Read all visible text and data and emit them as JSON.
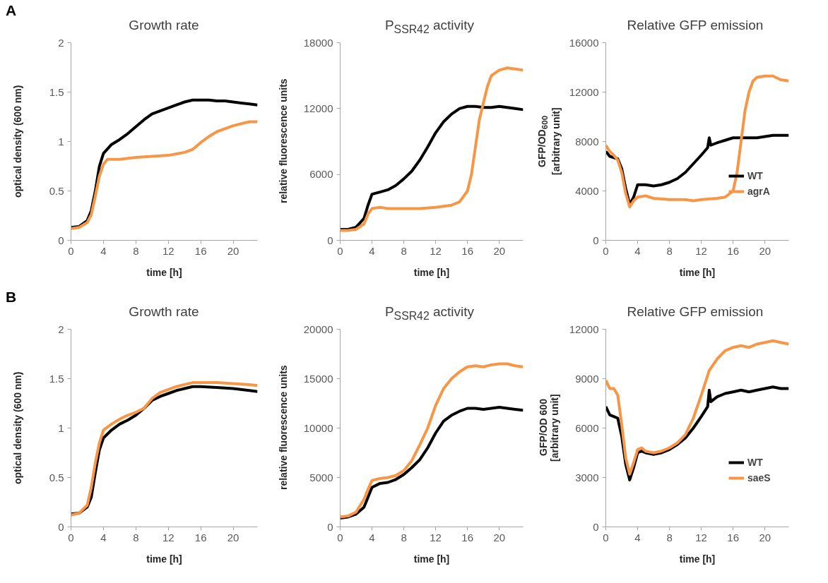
{
  "chart_data": [
    {
      "type": "line",
      "title": "Growth rate",
      "xlabel": "time [h]",
      "ylabel": "optical density (600 nm)",
      "annotations": [
        "A"
      ],
      "xlim": [
        0,
        23
      ],
      "xticks": [
        0,
        4,
        8,
        12,
        16,
        20
      ],
      "ylim": [
        0,
        2
      ],
      "yticks": [
        0,
        0.5,
        1,
        1.5,
        2
      ],
      "grid": false,
      "legend": false,
      "series": [
        {
          "color": "#000000",
          "x": [
            0,
            1,
            2,
            2.5,
            3,
            3.5,
            4,
            5,
            6,
            7,
            8,
            9,
            10,
            11,
            12,
            13,
            14,
            15,
            16,
            17,
            18,
            19,
            20,
            21,
            22,
            23
          ],
          "values": [
            0.13,
            0.14,
            0.2,
            0.3,
            0.5,
            0.75,
            0.88,
            0.97,
            1.02,
            1.08,
            1.15,
            1.22,
            1.28,
            1.31,
            1.34,
            1.37,
            1.4,
            1.42,
            1.42,
            1.42,
            1.41,
            1.41,
            1.4,
            1.39,
            1.38,
            1.37
          ]
        },
        {
          "color": "#f79646",
          "x": [
            0,
            1,
            2,
            2.5,
            3,
            3.5,
            4,
            4.5,
            5,
            6,
            8,
            10,
            12,
            14,
            15,
            16,
            17,
            18,
            19,
            20,
            21,
            22,
            23
          ],
          "values": [
            0.12,
            0.13,
            0.18,
            0.26,
            0.45,
            0.65,
            0.77,
            0.82,
            0.82,
            0.82,
            0.84,
            0.85,
            0.86,
            0.89,
            0.92,
            0.99,
            1.05,
            1.1,
            1.13,
            1.16,
            1.18,
            1.2,
            1.2
          ]
        }
      ]
    },
    {
      "type": "line",
      "title": "P$_{SSR42}$ activity",
      "xlabel": "time [h]",
      "ylabel": "relative fluorescence units",
      "xlim": [
        0,
        23
      ],
      "xticks": [
        0,
        4,
        8,
        12,
        16,
        20
      ],
      "ylim": [
        0,
        18000
      ],
      "yticks": [
        0,
        6000,
        12000,
        18000
      ],
      "grid": false,
      "legend": false,
      "series": [
        {
          "color": "#000000",
          "x": [
            0,
            1,
            2,
            3,
            3.5,
            4,
            5,
            6,
            7,
            8,
            9,
            10,
            11,
            12,
            13,
            14,
            15,
            16,
            17,
            18,
            19,
            20,
            21,
            22,
            23
          ],
          "values": [
            1000,
            1000,
            1200,
            2000,
            3200,
            4200,
            4400,
            4600,
            5000,
            5600,
            6300,
            7300,
            8500,
            9800,
            10800,
            11500,
            12000,
            12200,
            12200,
            12100,
            12100,
            12200,
            12100,
            12000,
            11900
          ]
        },
        {
          "color": "#f79646",
          "x": [
            0,
            1,
            2,
            3,
            3.5,
            4,
            5,
            6,
            8,
            10,
            12,
            14,
            15,
            16,
            16.5,
            17,
            17.5,
            18,
            18.5,
            19,
            20,
            21,
            22,
            23
          ],
          "values": [
            900,
            900,
            1000,
            1500,
            2400,
            2900,
            3000,
            2900,
            2900,
            2900,
            3000,
            3200,
            3500,
            4500,
            6000,
            8500,
            11000,
            12500,
            14000,
            15000,
            15500,
            15700,
            15600,
            15500
          ]
        }
      ]
    },
    {
      "type": "line",
      "title": "Relative GFP emission",
      "xlabel": "time [h]",
      "ylabel": "GFP/OD$_{600}$\n[arbitrary unit]",
      "xlim": [
        0,
        23
      ],
      "xticks": [
        0,
        4,
        8,
        12,
        16,
        20
      ],
      "ylim": [
        0,
        16000
      ],
      "yticks": [
        0,
        4000,
        8000,
        12000,
        16000
      ],
      "grid": false,
      "legend": "right",
      "series": [
        {
          "name": "WT",
          "color": "#000000",
          "x": [
            0,
            0.5,
            1,
            1.5,
            2,
            2.5,
            3,
            3.5,
            4,
            5,
            6,
            7,
            8,
            9,
            10,
            11,
            12,
            12.8,
            13,
            13.2,
            14,
            15,
            16,
            17,
            18,
            19,
            20,
            21,
            22,
            23
          ],
          "values": [
            7200,
            6800,
            6700,
            6600,
            5800,
            4200,
            2900,
            3500,
            4500,
            4500,
            4400,
            4500,
            4700,
            5000,
            5500,
            6200,
            6900,
            7500,
            8300,
            7700,
            7900,
            8100,
            8300,
            8300,
            8300,
            8300,
            8400,
            8500,
            8500,
            8500
          ]
        },
        {
          "name": "agrA",
          "color": "#f79646",
          "x": [
            0,
            0.5,
            1,
            1.5,
            2,
            2.5,
            3,
            3.5,
            4,
            5,
            6,
            8,
            10,
            11,
            12,
            14,
            15,
            16,
            16.5,
            17,
            17.5,
            18,
            18.5,
            19,
            20,
            21,
            22,
            23
          ],
          "values": [
            7700,
            7200,
            6900,
            6500,
            5500,
            3800,
            2700,
            3200,
            3500,
            3600,
            3400,
            3300,
            3300,
            3200,
            3300,
            3400,
            3500,
            4000,
            5500,
            8000,
            10500,
            12000,
            12900,
            13200,
            13300,
            13300,
            13000,
            12900
          ]
        }
      ]
    },
    {
      "type": "line",
      "title": "Growth rate",
      "xlabel": "time [h]",
      "ylabel": "optical density (600 nm)",
      "annotations": [
        "B"
      ],
      "xlim": [
        0,
        23
      ],
      "xticks": [
        0,
        4,
        8,
        12,
        16,
        20
      ],
      "ylim": [
        0,
        2
      ],
      "yticks": [
        0,
        0.5,
        1,
        1.5,
        2
      ],
      "grid": false,
      "legend": false,
      "series": [
        {
          "color": "#000000",
          "x": [
            0,
            1,
            2,
            2.5,
            3,
            3.5,
            4,
            5,
            6,
            7,
            8,
            9,
            10,
            11,
            12,
            13,
            14,
            15,
            16,
            18,
            20,
            22,
            23
          ],
          "values": [
            0.13,
            0.14,
            0.2,
            0.3,
            0.55,
            0.78,
            0.9,
            0.98,
            1.04,
            1.08,
            1.13,
            1.2,
            1.28,
            1.32,
            1.35,
            1.38,
            1.4,
            1.42,
            1.42,
            1.41,
            1.4,
            1.38,
            1.37
          ]
        },
        {
          "color": "#f79646",
          "x": [
            0,
            1,
            2,
            2.5,
            3,
            3.5,
            4,
            5,
            6,
            7,
            8,
            9,
            10,
            11,
            12,
            13,
            14,
            15,
            16,
            18,
            20,
            22,
            23
          ],
          "values": [
            0.12,
            0.14,
            0.22,
            0.4,
            0.65,
            0.85,
            0.98,
            1.04,
            1.09,
            1.13,
            1.16,
            1.2,
            1.3,
            1.36,
            1.39,
            1.42,
            1.44,
            1.46,
            1.46,
            1.46,
            1.45,
            1.44,
            1.43
          ]
        }
      ]
    },
    {
      "type": "line",
      "title": "P$_{SSR42}$ activity",
      "xlabel": "time [h]",
      "ylabel": "relative fluorescence  units",
      "xlim": [
        0,
        23
      ],
      "xticks": [
        0,
        4,
        8,
        12,
        16,
        20
      ],
      "ylim": [
        0,
        20000
      ],
      "yticks": [
        0,
        5000,
        10000,
        15000,
        20000
      ],
      "grid": false,
      "legend": false,
      "series": [
        {
          "color": "#000000",
          "x": [
            0,
            1,
            2,
            3,
            3.5,
            4,
            5,
            6,
            7,
            8,
            9,
            10,
            11,
            12,
            13,
            14,
            15,
            16,
            17,
            18,
            19,
            20,
            21,
            22,
            23
          ],
          "values": [
            900,
            1000,
            1300,
            2000,
            3000,
            4000,
            4400,
            4500,
            4800,
            5300,
            6000,
            6800,
            8000,
            9500,
            10700,
            11300,
            11700,
            12000,
            12000,
            11900,
            12000,
            12100,
            12000,
            11900,
            11800
          ]
        },
        {
          "color": "#f79646",
          "x": [
            0,
            1,
            2,
            3,
            3.5,
            4,
            5,
            6,
            7,
            8,
            9,
            10,
            11,
            12,
            13,
            14,
            15,
            16,
            17,
            18,
            19,
            20,
            21,
            22,
            23
          ],
          "values": [
            1000,
            1100,
            1500,
            2800,
            3800,
            4700,
            4900,
            5000,
            5200,
            5700,
            6700,
            8300,
            10000,
            12300,
            14000,
            15000,
            15700,
            16200,
            16300,
            16200,
            16400,
            16500,
            16500,
            16300,
            16200
          ]
        }
      ]
    },
    {
      "type": "line",
      "title": "Relative GFP emission",
      "xlabel": "time [h]",
      "ylabel": "GFP/OD 600\n[arbitrary unit]",
      "xlim": [
        0,
        23
      ],
      "xticks": [
        0,
        4,
        8,
        12,
        16,
        20
      ],
      "ylim": [
        0,
        12000
      ],
      "yticks": [
        0,
        3000,
        6000,
        9000,
        12000
      ],
      "grid": false,
      "legend": "right",
      "series": [
        {
          "name": "WT",
          "color": "#000000",
          "x": [
            0,
            0.5,
            1,
            1.5,
            2,
            2.5,
            3,
            3.5,
            4,
            4.5,
            5,
            6,
            7,
            8,
            9,
            10,
            11,
            12,
            12.8,
            13,
            13.2,
            14,
            15,
            16,
            17,
            18,
            19,
            20,
            21,
            22,
            23
          ],
          "values": [
            7300,
            6800,
            6700,
            6600,
            5500,
            3800,
            2850,
            3600,
            4500,
            4600,
            4500,
            4400,
            4500,
            4700,
            5000,
            5400,
            6000,
            6700,
            7300,
            8300,
            7600,
            7900,
            8100,
            8200,
            8300,
            8200,
            8300,
            8400,
            8500,
            8400,
            8400
          ]
        },
        {
          "name": "saeS",
          "color": "#f79646",
          "x": [
            0,
            0.5,
            1,
            1.5,
            2,
            2.5,
            3,
            3.5,
            4,
            4.5,
            5,
            6,
            7,
            8,
            9,
            10,
            11,
            12,
            13,
            14,
            15,
            16,
            17,
            18,
            19,
            20,
            21,
            22,
            23
          ],
          "values": [
            8900,
            8400,
            8400,
            8000,
            6200,
            4200,
            3200,
            3900,
            4700,
            4800,
            4600,
            4500,
            4600,
            4800,
            5100,
            5600,
            6600,
            8000,
            9500,
            10200,
            10700,
            10900,
            11000,
            10900,
            11100,
            11200,
            11300,
            11200,
            11100
          ]
        }
      ]
    }
  ]
}
